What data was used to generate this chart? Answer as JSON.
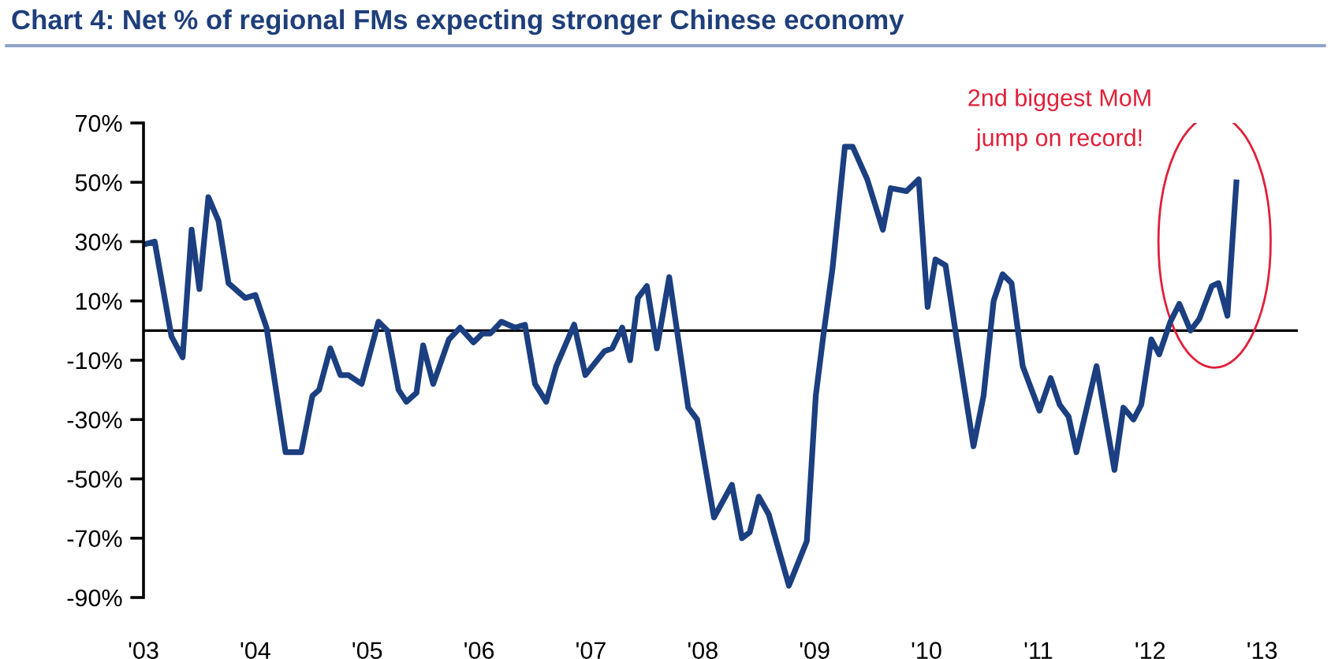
{
  "chart_data": {
    "type": "line",
    "title": "Chart 4: Net % of regional FMs expecting stronger Chinese economy",
    "x": [
      2003.0,
      2003.1,
      2003.25,
      2003.35,
      2003.43,
      2003.5,
      2003.58,
      2003.67,
      2003.76,
      2003.91,
      2004.0,
      2004.1,
      2004.27,
      2004.41,
      2004.51,
      2004.57,
      2004.67,
      2004.76,
      2004.83,
      2004.95,
      2005.1,
      2005.18,
      2005.28,
      2005.35,
      2005.44,
      2005.5,
      2005.59,
      2005.73,
      2005.83,
      2005.95,
      2006.03,
      2006.1,
      2006.2,
      2006.32,
      2006.41,
      2006.5,
      2006.6,
      2006.69,
      2006.85,
      2006.95,
      2007.12,
      2007.19,
      2007.28,
      2007.35,
      2007.42,
      2007.5,
      2007.59,
      2007.7,
      2007.87,
      2007.95,
      2008.1,
      2008.26,
      2008.35,
      2008.42,
      2008.5,
      2008.59,
      2008.77,
      2008.93,
      2009.01,
      2009.08,
      2009.16,
      2009.27,
      2009.34,
      2009.47,
      2009.61,
      2009.68,
      2009.82,
      2009.93,
      2010.01,
      2010.08,
      2010.17,
      2010.27,
      2010.42,
      2010.51,
      2010.6,
      2010.68,
      2010.76,
      2010.86,
      2011.01,
      2011.11,
      2011.19,
      2011.27,
      2011.34,
      2011.52,
      2011.68,
      2011.76,
      2011.85,
      2011.92,
      2012.01,
      2012.08,
      2012.18,
      2012.26,
      2012.36,
      2012.44,
      2012.55,
      2012.61,
      2012.69,
      2012.77
    ],
    "series": [
      {
        "color": "#1b3f80",
        "values": [
          29,
          30,
          -2,
          -9,
          34,
          14,
          45,
          37,
          16,
          11,
          12,
          1,
          -41,
          -41,
          -22,
          -20,
          -6,
          -15,
          -15,
          -18,
          3,
          0,
          -20,
          -24,
          -21,
          -5,
          -18,
          -3,
          1,
          -4,
          -1,
          -1,
          3,
          1,
          2,
          -18,
          -24,
          -12,
          2,
          -15,
          -7,
          -6,
          1,
          -10,
          11,
          15,
          -6,
          18,
          -26,
          -30,
          -63,
          -52,
          -70,
          -68,
          -56,
          -62,
          -86,
          -71,
          -22,
          -1,
          21,
          62,
          62,
          51,
          34,
          48,
          47,
          51,
          8,
          24,
          22,
          -3,
          -39,
          -22,
          10,
          19,
          16,
          -12,
          -27,
          -16,
          -25,
          -29,
          -41,
          -12,
          -47,
          -26,
          -30,
          -25,
          -3,
          -8,
          3,
          9,
          0,
          4,
          15,
          16,
          5,
          50
        ]
      }
    ],
    "xlim": [
      2003,
      2013.32
    ],
    "xticks": [
      {
        "value": 2003,
        "label": "'03"
      },
      {
        "value": 2004,
        "label": "'04"
      },
      {
        "value": 2005,
        "label": "'05"
      },
      {
        "value": 2006,
        "label": "'06"
      },
      {
        "value": 2007,
        "label": "'07"
      },
      {
        "value": 2008,
        "label": "'08"
      },
      {
        "value": 2009,
        "label": "'09"
      },
      {
        "value": 2010,
        "label": "'10"
      },
      {
        "value": 2011,
        "label": "'11"
      },
      {
        "value": 2012,
        "label": "'12"
      },
      {
        "value": 2013,
        "label": "'13"
      }
    ],
    "ylim": [
      -90,
      70
    ],
    "yticks": [
      {
        "value": 70,
        "label": "70%"
      },
      {
        "value": 50,
        "label": "50%"
      },
      {
        "value": 30,
        "label": "30%"
      },
      {
        "value": 10,
        "label": "10%"
      },
      {
        "value": -10,
        "label": "-10%"
      },
      {
        "value": -30,
        "label": "-30%"
      },
      {
        "value": -50,
        "label": "-50%"
      },
      {
        "value": -70,
        "label": "-70%"
      },
      {
        "value": -90,
        "label": "-90%"
      }
    ],
    "ref_lines": [
      {
        "axis": "y",
        "value": 0,
        "color": "#000000"
      }
    ],
    "annotations": [
      "2nd biggest MoM\njump on record!"
    ],
    "grid": false,
    "marker": "none",
    "line_style": "solid"
  }
}
